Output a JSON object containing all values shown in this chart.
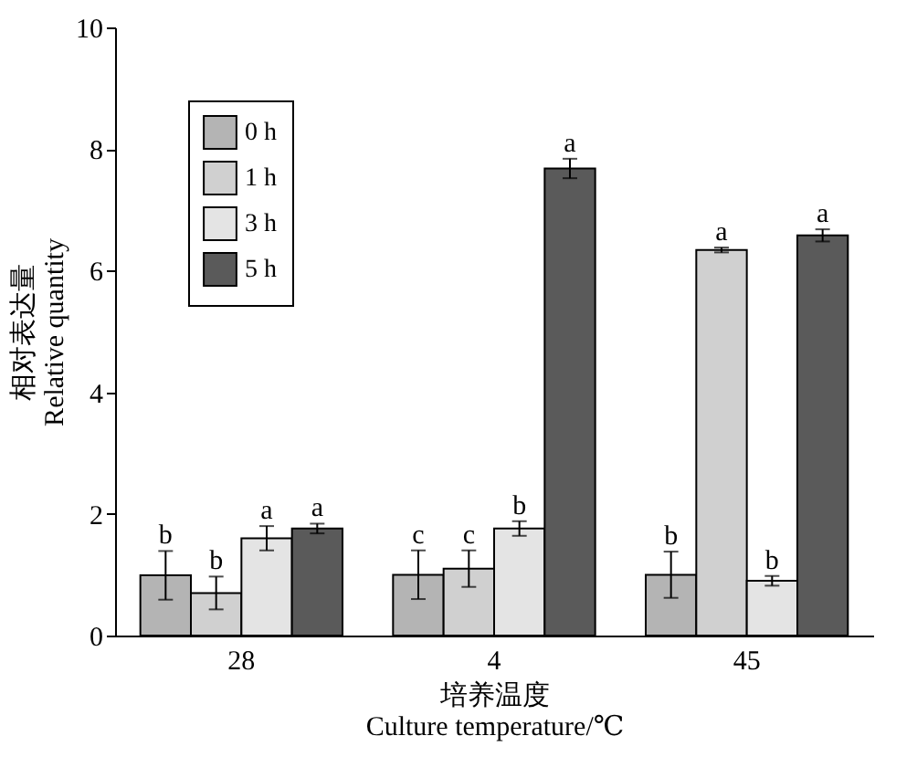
{
  "chart_data": {
    "type": "bar",
    "xlabel": "培养温度\nCulture temperature/℃",
    "ylabel": "相对表达量\nRelative quantity",
    "categories": [
      "28",
      "4",
      "45"
    ],
    "series": [
      {
        "name": "0 h",
        "color": "#b4b4b4",
        "values": [
          0.99,
          1.0,
          1.0
        ],
        "errors": [
          0.4,
          0.4,
          0.38
        ],
        "value_labels": [
          "b",
          "c",
          "b"
        ]
      },
      {
        "name": "1 h",
        "color": "#d0d0d0",
        "values": [
          0.7,
          1.1,
          6.34
        ],
        "errors": [
          0.27,
          0.3,
          0.04
        ],
        "value_labels": [
          "b",
          "c",
          "a"
        ]
      },
      {
        "name": "3 h",
        "color": "#e4e4e4",
        "values": [
          1.6,
          1.76,
          0.9
        ],
        "errors": [
          0.2,
          0.12,
          0.08
        ],
        "value_labels": [
          "a",
          "b",
          "b"
        ]
      },
      {
        "name": "5 h",
        "color": "#5a5a5a",
        "values": [
          1.76,
          7.68,
          6.58
        ],
        "errors": [
          0.08,
          0.16,
          0.1
        ],
        "value_labels": [
          "a",
          "a",
          "a"
        ]
      }
    ],
    "ylim": [
      0,
      10
    ],
    "yticks": [
      0,
      2,
      4,
      6,
      8,
      10
    ],
    "grid": false,
    "legend": "top left"
  }
}
